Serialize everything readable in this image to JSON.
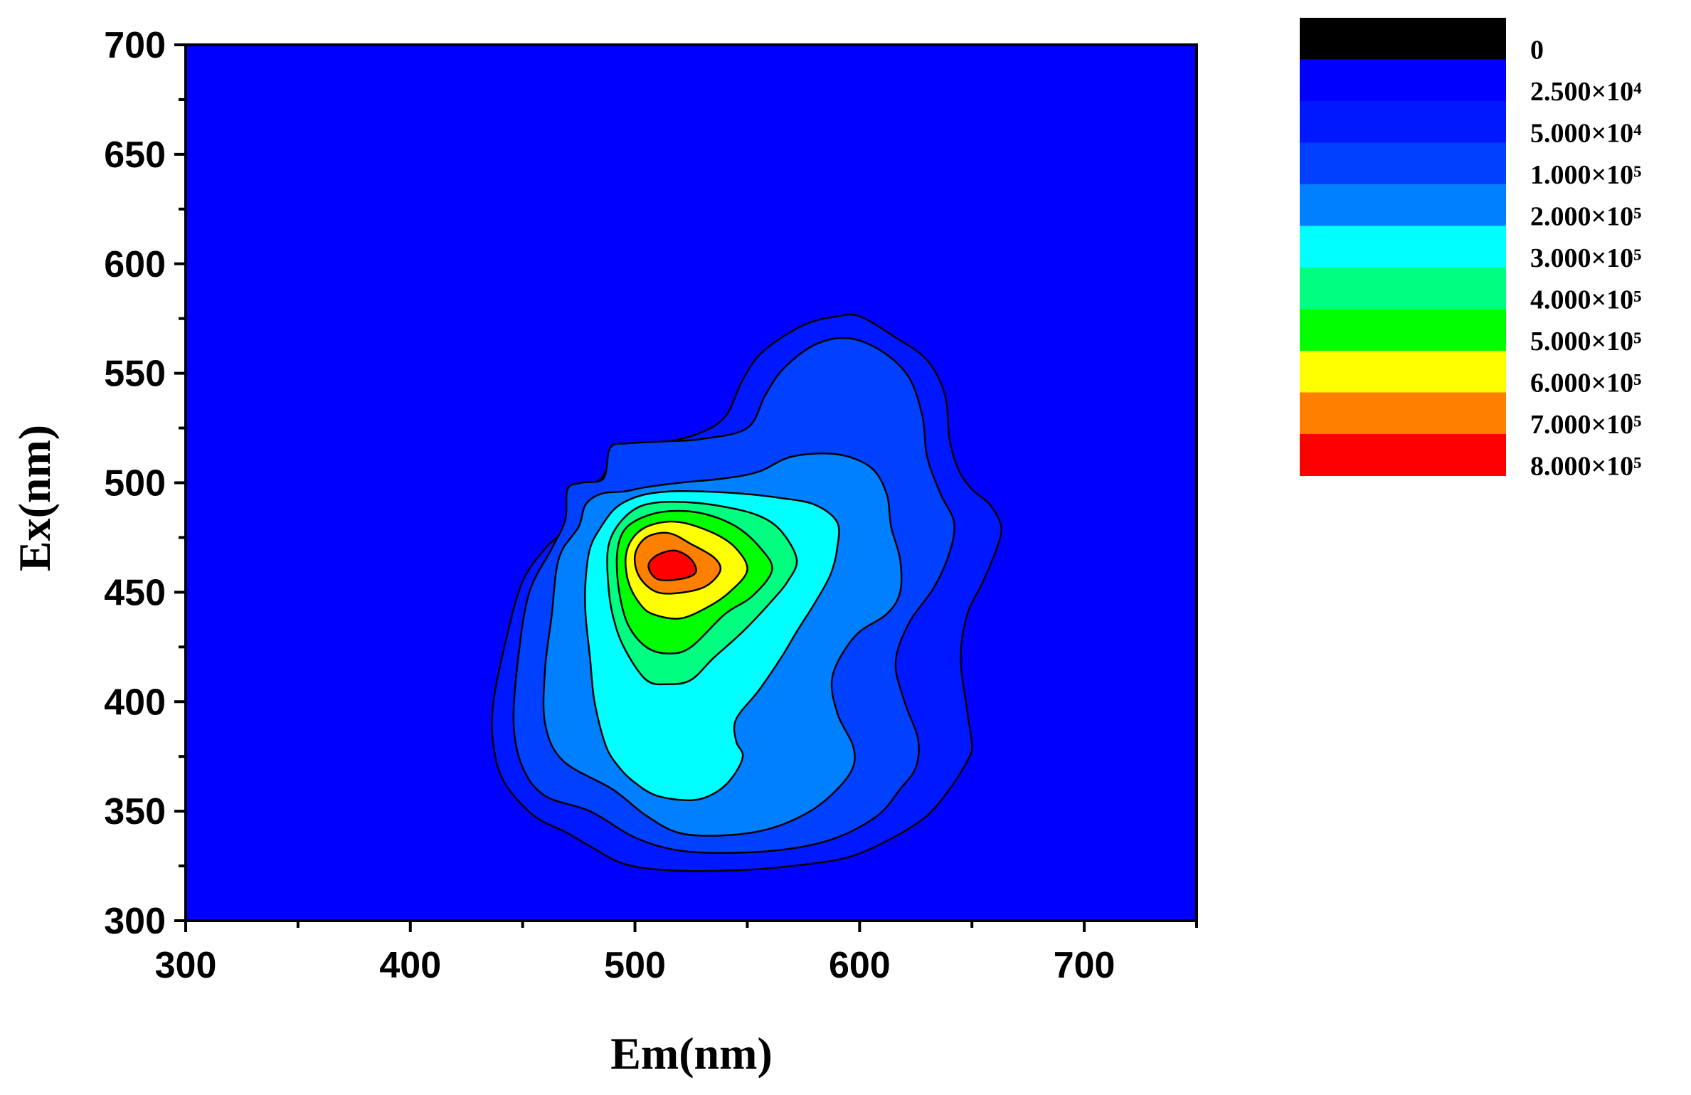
{
  "chart_data": {
    "type": "contour",
    "xlabel": "Em(nm)",
    "ylabel": "Ex(nm)",
    "xlim": [
      300,
      750
    ],
    "ylim": [
      300,
      700
    ],
    "x_ticks": [
      300,
      400,
      500,
      600,
      700
    ],
    "y_ticks": [
      300,
      350,
      400,
      450,
      500,
      550,
      600,
      650,
      700
    ],
    "legend": {
      "placement": "top-right",
      "levels": [
        {
          "label": "0",
          "color": "#000000"
        },
        {
          "label": "2.500×10⁴",
          "color": "#0000ff"
        },
        {
          "label": "5.000×10⁴",
          "color": "#0018ff"
        },
        {
          "label": "1.000×10⁵",
          "color": "#0040ff"
        },
        {
          "label": "2.000×10⁵",
          "color": "#0080ff"
        },
        {
          "label": "3.000×10⁵",
          "color": "#00ffff"
        },
        {
          "label": "4.000×10⁵",
          "color": "#00ff80"
        },
        {
          "label": "5.000×10⁵",
          "color": "#00ff00"
        },
        {
          "label": "6.000×10⁵",
          "color": "#ffff00"
        },
        {
          "label": "7.000×10⁵",
          "color": "#ff8000"
        },
        {
          "label": "8.000×10⁵",
          "color": "#ff0000"
        }
      ]
    },
    "background_color": "#0000ff",
    "contours": [
      {
        "level": 1,
        "color": "#0018ff",
        "points": [
          [
            470,
            340
          ],
          [
            480,
            334
          ],
          [
            495,
            326
          ],
          [
            515,
            323
          ],
          [
            545,
            323
          ],
          [
            570,
            325
          ],
          [
            595,
            329
          ],
          [
            615,
            338
          ],
          [
            630,
            348
          ],
          [
            640,
            360
          ],
          [
            648,
            373
          ],
          [
            650,
            380
          ],
          [
            648,
            395
          ],
          [
            645,
            420
          ],
          [
            648,
            440
          ],
          [
            655,
            455
          ],
          [
            661,
            470
          ],
          [
            663,
            480
          ],
          [
            658,
            490
          ],
          [
            650,
            497
          ],
          [
            644,
            506
          ],
          [
            640,
            520
          ],
          [
            638,
            540
          ],
          [
            630,
            556
          ],
          [
            615,
            567
          ],
          [
            600,
            576
          ],
          [
            590,
            576
          ],
          [
            575,
            572
          ],
          [
            557,
            560
          ],
          [
            548,
            547
          ],
          [
            540,
            530
          ],
          [
            527,
            522
          ],
          [
            510,
            518
          ],
          [
            500,
            517
          ],
          [
            492,
            516
          ],
          [
            485,
            502
          ],
          [
            476,
            499
          ],
          [
            470,
            497
          ],
          [
            469,
            480
          ],
          [
            460,
            470
          ],
          [
            450,
            455
          ],
          [
            443,
            430
          ],
          [
            437,
            400
          ],
          [
            437,
            380
          ],
          [
            442,
            363
          ],
          [
            455,
            348
          ]
        ]
      },
      {
        "level": 2,
        "color": "#0040ff",
        "points": [
          [
            480,
            350
          ],
          [
            500,
            338
          ],
          [
            520,
            332
          ],
          [
            545,
            331
          ],
          [
            570,
            333
          ],
          [
            590,
            338
          ],
          [
            608,
            348
          ],
          [
            618,
            360
          ],
          [
            625,
            370
          ],
          [
            626,
            383
          ],
          [
            620,
            400
          ],
          [
            616,
            418
          ],
          [
            622,
            436
          ],
          [
            633,
            452
          ],
          [
            640,
            468
          ],
          [
            642,
            482
          ],
          [
            636,
            495
          ],
          [
            630,
            512
          ],
          [
            628,
            530
          ],
          [
            622,
            548
          ],
          [
            610,
            560
          ],
          [
            595,
            566
          ],
          [
            580,
            563
          ],
          [
            566,
            552
          ],
          [
            558,
            540
          ],
          [
            550,
            525
          ],
          [
            530,
            520
          ],
          [
            515,
            519
          ],
          [
            497,
            518
          ],
          [
            489,
            516
          ],
          [
            486,
            502
          ],
          [
            476,
            500
          ],
          [
            470,
            497
          ],
          [
            469,
            483
          ],
          [
            463,
            470
          ],
          [
            453,
            450
          ],
          [
            448,
            420
          ],
          [
            446,
            390
          ],
          [
            450,
            370
          ],
          [
            460,
            357
          ]
        ]
      },
      {
        "level": 3,
        "color": "#0080ff",
        "points": [
          [
            490,
            360
          ],
          [
            505,
            348
          ],
          [
            520,
            340
          ],
          [
            540,
            339
          ],
          [
            560,
            342
          ],
          [
            578,
            350
          ],
          [
            590,
            360
          ],
          [
            597,
            370
          ],
          [
            597,
            380
          ],
          [
            590,
            395
          ],
          [
            588,
            412
          ],
          [
            598,
            430
          ],
          [
            612,
            440
          ],
          [
            618,
            450
          ],
          [
            618,
            465
          ],
          [
            614,
            480
          ],
          [
            612,
            495
          ],
          [
            605,
            507
          ],
          [
            590,
            513
          ],
          [
            570,
            512
          ],
          [
            555,
            505
          ],
          [
            540,
            502
          ],
          [
            520,
            500
          ],
          [
            505,
            498
          ],
          [
            495,
            496
          ],
          [
            485,
            495
          ],
          [
            478,
            490
          ],
          [
            475,
            480
          ],
          [
            468,
            470
          ],
          [
            465,
            460
          ],
          [
            463,
            440
          ],
          [
            460,
            415
          ],
          [
            460,
            390
          ],
          [
            468,
            373
          ]
        ]
      },
      {
        "level": 4,
        "color": "#00ffff",
        "points": [
          [
            500,
            363
          ],
          [
            510,
            357
          ],
          [
            525,
            355
          ],
          [
            535,
            358
          ],
          [
            543,
            365
          ],
          [
            548,
            375
          ],
          [
            545,
            382
          ],
          [
            545,
            392
          ],
          [
            555,
            405
          ],
          [
            565,
            420
          ],
          [
            572,
            432
          ],
          [
            580,
            445
          ],
          [
            587,
            458
          ],
          [
            590,
            470
          ],
          [
            590,
            482
          ],
          [
            580,
            490
          ],
          [
            565,
            493
          ],
          [
            548,
            495
          ],
          [
            530,
            496
          ],
          [
            515,
            496
          ],
          [
            502,
            494
          ],
          [
            492,
            489
          ],
          [
            485,
            480
          ],
          [
            480,
            470
          ],
          [
            478,
            455
          ],
          [
            478,
            440
          ],
          [
            480,
            420
          ],
          [
            482,
            400
          ],
          [
            487,
            380
          ],
          [
            493,
            370
          ]
        ]
      },
      {
        "level": 5,
        "color": "#00ff80",
        "points": [
          [
            505,
            410
          ],
          [
            515,
            408
          ],
          [
            525,
            410
          ],
          [
            535,
            420
          ],
          [
            548,
            432
          ],
          [
            560,
            445
          ],
          [
            568,
            455
          ],
          [
            572,
            465
          ],
          [
            565,
            478
          ],
          [
            555,
            485
          ],
          [
            540,
            489
          ],
          [
            525,
            491
          ],
          [
            510,
            491
          ],
          [
            500,
            488
          ],
          [
            492,
            480
          ],
          [
            488,
            470
          ],
          [
            488,
            455
          ],
          [
            490,
            440
          ],
          [
            495,
            425
          ]
        ]
      },
      {
        "level": 6,
        "color": "#00ff00",
        "points": [
          [
            505,
            425
          ],
          [
            515,
            422
          ],
          [
            525,
            425
          ],
          [
            540,
            440
          ],
          [
            552,
            448
          ],
          [
            561,
            460
          ],
          [
            556,
            470
          ],
          [
            545,
            480
          ],
          [
            530,
            486
          ],
          [
            515,
            487
          ],
          [
            503,
            484
          ],
          [
            495,
            478
          ],
          [
            492,
            467
          ],
          [
            493,
            450
          ],
          [
            497,
            435
          ]
        ]
      },
      {
        "level": 7,
        "color": "#ffff00",
        "points": [
          [
            508,
            440
          ],
          [
            520,
            438
          ],
          [
            532,
            443
          ],
          [
            542,
            450
          ],
          [
            550,
            460
          ],
          [
            545,
            470
          ],
          [
            535,
            477
          ],
          [
            520,
            482
          ],
          [
            508,
            481
          ],
          [
            500,
            476
          ],
          [
            496,
            467
          ],
          [
            497,
            455
          ],
          [
            502,
            445
          ]
        ]
      },
      {
        "level": 8,
        "color": "#ff8000",
        "points": [
          [
            510,
            450
          ],
          [
            522,
            450
          ],
          [
            532,
            453
          ],
          [
            538,
            460
          ],
          [
            535,
            466
          ],
          [
            525,
            472
          ],
          [
            515,
            477
          ],
          [
            505,
            475
          ],
          [
            500,
            467
          ],
          [
            502,
            457
          ]
        ]
      },
      {
        "level": 9,
        "color": "#ff0000",
        "points": [
          [
            510,
            456
          ],
          [
            520,
            456
          ],
          [
            527,
            459
          ],
          [
            525,
            465
          ],
          [
            518,
            469
          ],
          [
            510,
            467
          ],
          [
            506,
            462
          ]
        ]
      }
    ]
  }
}
